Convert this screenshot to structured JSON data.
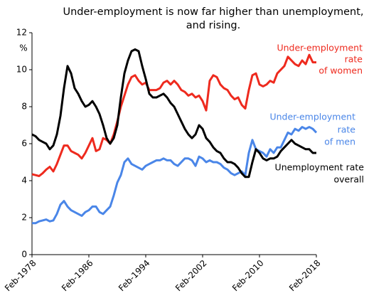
{
  "chart_data": {
    "type": "line",
    "title": [
      "Under-employment is now far higher than unemployment,",
      "and rising."
    ],
    "y_label": "%",
    "x": [
      "1978-02",
      "1978-08",
      "1979-02",
      "1979-08",
      "1980-02",
      "1980-08",
      "1981-02",
      "1981-08",
      "1982-02",
      "1982-08",
      "1983-02",
      "1983-08",
      "1984-02",
      "1984-08",
      "1985-02",
      "1985-08",
      "1986-02",
      "1986-08",
      "1987-02",
      "1987-08",
      "1988-02",
      "1988-08",
      "1989-02",
      "1989-08",
      "1990-02",
      "1990-08",
      "1991-02",
      "1991-08",
      "1992-02",
      "1992-08",
      "1993-02",
      "1993-08",
      "1994-02",
      "1994-08",
      "1995-02",
      "1995-08",
      "1996-02",
      "1996-08",
      "1997-02",
      "1997-08",
      "1998-02",
      "1998-08",
      "1999-02",
      "1999-08",
      "2000-02",
      "2000-08",
      "2001-02",
      "2001-08",
      "2002-02",
      "2002-08",
      "2003-02",
      "2003-08",
      "2004-02",
      "2004-08",
      "2005-02",
      "2005-08",
      "2006-02",
      "2006-08",
      "2007-02",
      "2007-08",
      "2008-02",
      "2008-08",
      "2009-02",
      "2009-08",
      "2010-02",
      "2010-08",
      "2011-02",
      "2011-08",
      "2012-02",
      "2012-08",
      "2013-02",
      "2013-08",
      "2014-02",
      "2014-08",
      "2015-02",
      "2015-08",
      "2016-02",
      "2016-08",
      "2017-02",
      "2017-08",
      "2018-02"
    ],
    "series": [
      {
        "name": [
          "Under-employment",
          "rate",
          "of women"
        ],
        "color": "#ee2a1e",
        "values": [
          4.35,
          4.3,
          4.25,
          4.4,
          4.6,
          4.75,
          4.5,
          4.9,
          5.4,
          5.9,
          5.9,
          5.6,
          5.5,
          5.4,
          5.2,
          5.5,
          5.9,
          6.3,
          5.6,
          5.7,
          6.3,
          6.2,
          6.0,
          6.5,
          7.2,
          8.0,
          8.6,
          9.2,
          9.6,
          9.7,
          9.4,
          9.2,
          9.3,
          8.9,
          8.9,
          8.9,
          9.0,
          9.3,
          9.4,
          9.2,
          9.4,
          9.2,
          8.9,
          8.8,
          8.6,
          8.7,
          8.5,
          8.6,
          8.3,
          7.8,
          9.4,
          9.7,
          9.6,
          9.2,
          9.0,
          8.9,
          8.6,
          8.4,
          8.5,
          8.1,
          7.9,
          8.9,
          9.7,
          9.8,
          9.2,
          9.1,
          9.2,
          9.4,
          9.3,
          9.8,
          10.0,
          10.2,
          10.7,
          10.5,
          10.3,
          10.2,
          10.5,
          10.3,
          10.8,
          10.4,
          10.4
        ]
      },
      {
        "name": [
          "Under-employment",
          "rate",
          "of men"
        ],
        "color": "#4a86e8",
        "values": [
          1.7,
          1.7,
          1.8,
          1.85,
          1.9,
          1.8,
          1.85,
          2.2,
          2.7,
          2.9,
          2.6,
          2.4,
          2.3,
          2.2,
          2.1,
          2.3,
          2.4,
          2.6,
          2.6,
          2.3,
          2.2,
          2.4,
          2.6,
          3.2,
          3.9,
          4.3,
          5.0,
          5.2,
          4.9,
          4.8,
          4.7,
          4.6,
          4.8,
          4.9,
          5.0,
          5.1,
          5.1,
          5.2,
          5.1,
          5.1,
          4.9,
          4.8,
          5.0,
          5.2,
          5.2,
          5.1,
          4.8,
          5.3,
          5.2,
          5.0,
          5.1,
          5.0,
          5.0,
          4.9,
          4.7,
          4.6,
          4.4,
          4.3,
          4.4,
          4.5,
          4.3,
          5.5,
          6.2,
          5.7,
          5.6,
          5.5,
          5.3,
          5.7,
          5.5,
          5.8,
          5.8,
          6.2,
          6.6,
          6.5,
          6.8,
          6.7,
          6.9,
          6.8,
          6.9,
          6.8,
          6.6
        ]
      },
      {
        "name": [
          "Unemployment rate",
          "overall"
        ],
        "color": "#000000",
        "values": [
          6.5,
          6.4,
          6.2,
          6.1,
          6.0,
          5.7,
          5.9,
          6.5,
          7.5,
          9.0,
          10.2,
          9.8,
          9.0,
          8.7,
          8.3,
          8.0,
          8.1,
          8.3,
          8.0,
          7.6,
          7.0,
          6.3,
          6.0,
          6.3,
          7.0,
          8.5,
          9.8,
          10.5,
          11.0,
          11.1,
          11.0,
          10.2,
          9.5,
          8.7,
          8.5,
          8.5,
          8.6,
          8.7,
          8.5,
          8.2,
          8.0,
          7.6,
          7.2,
          6.8,
          6.5,
          6.3,
          6.5,
          7.0,
          6.8,
          6.3,
          6.1,
          5.8,
          5.6,
          5.5,
          5.2,
          5.0,
          5.0,
          4.9,
          4.7,
          4.4,
          4.2,
          4.2,
          5.0,
          5.7,
          5.5,
          5.2,
          5.1,
          5.2,
          5.2,
          5.3,
          5.6,
          5.8,
          6.0,
          6.2,
          6.0,
          5.9,
          5.8,
          5.7,
          5.7,
          5.5,
          5.5
        ]
      }
    ],
    "xlim": [
      "1978-02",
      "2018-02"
    ],
    "xticks": [
      {
        "value": "1978-02",
        "label": "Feb-1978"
      },
      {
        "value": "1986-02",
        "label": "Feb-1986"
      },
      {
        "value": "1994-02",
        "label": "Feb-1994"
      },
      {
        "value": "2002-02",
        "label": "Feb-2002"
      },
      {
        "value": "2010-02",
        "label": "Feb-2010"
      },
      {
        "value": "2018-02",
        "label": "Feb-2018"
      }
    ],
    "ylim": [
      0,
      12
    ],
    "yticks": [
      0,
      2,
      4,
      6,
      8,
      10,
      12
    ]
  }
}
